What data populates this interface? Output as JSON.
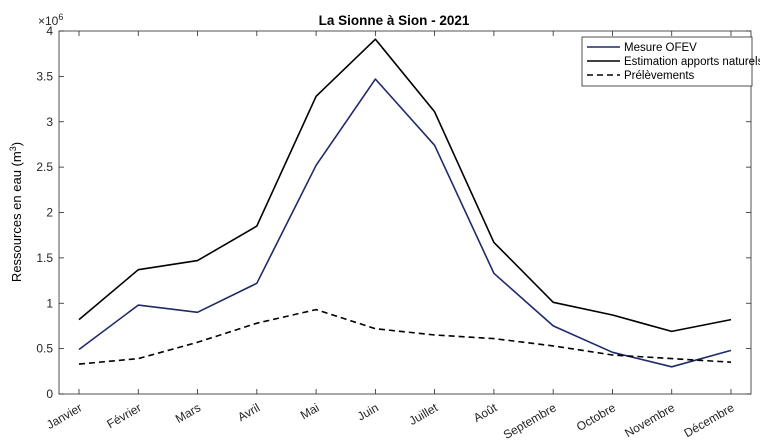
{
  "chart_data": {
    "type": "line",
    "title": "La Sionne à Sion - 2021",
    "ylabel_main": "Ressources en eau (m",
    "ylabel_sup": "3",
    "ylabel_end": ")",
    "exponent_base": "×10",
    "exponent_power": "6",
    "categories": [
      "Janvier",
      "Février",
      "Mars",
      "Avril",
      "Mai",
      "Juin",
      "Juillet",
      "Août",
      "Septembre",
      "Octobre",
      "Novembre",
      "Décembre"
    ],
    "yticks": [
      "0",
      "0.5",
      "1",
      "1.5",
      "2",
      "2.5",
      "3",
      "3.5",
      "4"
    ],
    "ylim": [
      0,
      4
    ],
    "scale": 1000000,
    "legend_position": "top-right",
    "series": [
      {
        "name": "Mesure OFEV",
        "color": "#1f2a6b",
        "style": "solid",
        "values": [
          0.49,
          0.98,
          0.9,
          1.22,
          2.52,
          3.47,
          2.74,
          1.33,
          0.75,
          0.46,
          0.3,
          0.48
        ]
      },
      {
        "name": "Estimation apports naturels",
        "color": "#000000",
        "style": "solid",
        "values": [
          0.82,
          1.37,
          1.47,
          1.85,
          3.28,
          3.91,
          3.11,
          1.67,
          1.01,
          0.87,
          0.69,
          0.82
        ]
      },
      {
        "name": "Prélèvements",
        "color": "#000000",
        "style": "dashed",
        "values": [
          0.33,
          0.39,
          0.57,
          0.78,
          0.93,
          0.72,
          0.65,
          0.61,
          0.53,
          0.43,
          0.39,
          0.35
        ]
      }
    ]
  }
}
